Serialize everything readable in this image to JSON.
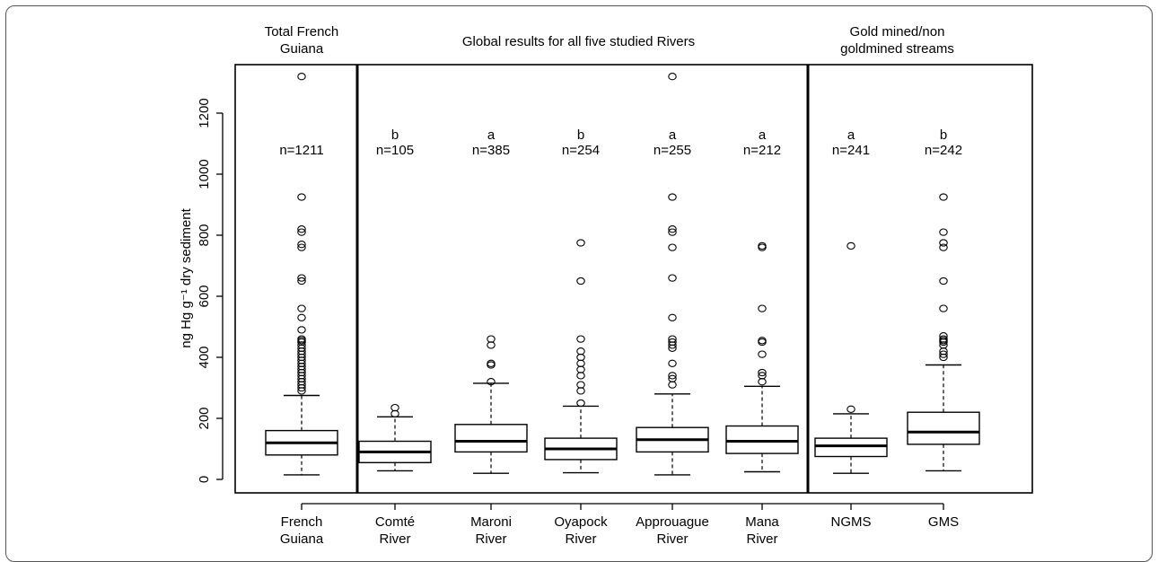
{
  "chart_data": {
    "type": "box",
    "ylabel": "ng Hg g⁻¹ dry sediment",
    "ylim": [
      0,
      1300
    ],
    "yticks": [
      0,
      200,
      400,
      600,
      800,
      1000,
      1200
    ],
    "panels": [
      {
        "title_lines": [
          "Total French",
          "Guiana"
        ],
        "first": 0,
        "last": 0
      },
      {
        "title_lines": [
          "Global results for all five studied Rivers"
        ],
        "first": 1,
        "last": 5
      },
      {
        "title_lines": [
          "Gold mined/non",
          "goldmined streams"
        ],
        "first": 6,
        "last": 7
      }
    ],
    "boxes": [
      {
        "label_lines": [
          "French",
          "Guiana"
        ],
        "n_label": "n=1211",
        "letter": "",
        "min": 15,
        "q1": 80,
        "median": 120,
        "q3": 160,
        "max": 275,
        "outliers": [
          1320,
          925,
          820,
          810,
          770,
          760,
          660,
          650,
          560,
          530,
          490,
          460,
          455,
          450,
          440,
          430,
          420,
          410,
          400,
          390,
          380,
          370,
          360,
          350,
          340,
          330,
          320,
          310,
          300,
          290
        ]
      },
      {
        "label_lines": [
          "Comté",
          "River"
        ],
        "n_label": "n=105",
        "letter": "b",
        "min": 28,
        "q1": 55,
        "median": 90,
        "q3": 125,
        "max": 205,
        "outliers": [
          235,
          215
        ]
      },
      {
        "label_lines": [
          "Maroni",
          "River"
        ],
        "n_label": "n=385",
        "letter": "a",
        "min": 20,
        "q1": 90,
        "median": 125,
        "q3": 180,
        "max": 315,
        "outliers": [
          460,
          440,
          380,
          375,
          320
        ]
      },
      {
        "label_lines": [
          "Oyapock",
          "River"
        ],
        "n_label": "n=254",
        "letter": "b",
        "min": 22,
        "q1": 65,
        "median": 100,
        "q3": 135,
        "max": 240,
        "outliers": [
          775,
          650,
          460,
          420,
          400,
          380,
          360,
          340,
          310,
          290,
          250
        ]
      },
      {
        "label_lines": [
          "Approuague",
          "River"
        ],
        "n_label": "n=255",
        "letter": "a",
        "min": 15,
        "q1": 90,
        "median": 130,
        "q3": 170,
        "max": 280,
        "outliers": [
          1320,
          925,
          820,
          810,
          760,
          660,
          530,
          460,
          450,
          440,
          430,
          380,
          340,
          330,
          310
        ]
      },
      {
        "label_lines": [
          "Mana",
          "River"
        ],
        "n_label": "n=212",
        "letter": "a",
        "min": 25,
        "q1": 85,
        "median": 125,
        "q3": 175,
        "max": 305,
        "outliers": [
          765,
          760,
          560,
          455,
          450,
          410,
          350,
          340,
          320
        ]
      },
      {
        "label_lines": [
          "NGMS"
        ],
        "n_label": "n=241",
        "letter": "a",
        "min": 20,
        "q1": 75,
        "median": 110,
        "q3": 135,
        "max": 215,
        "outliers": [
          765,
          230
        ]
      },
      {
        "label_lines": [
          "GMS"
        ],
        "n_label": "n=242",
        "letter": "b",
        "min": 28,
        "q1": 115,
        "median": 155,
        "q3": 220,
        "max": 375,
        "outliers": [
          925,
          810,
          775,
          760,
          650,
          560,
          470,
          460,
          455,
          450,
          440,
          420,
          410,
          400
        ]
      }
    ]
  }
}
